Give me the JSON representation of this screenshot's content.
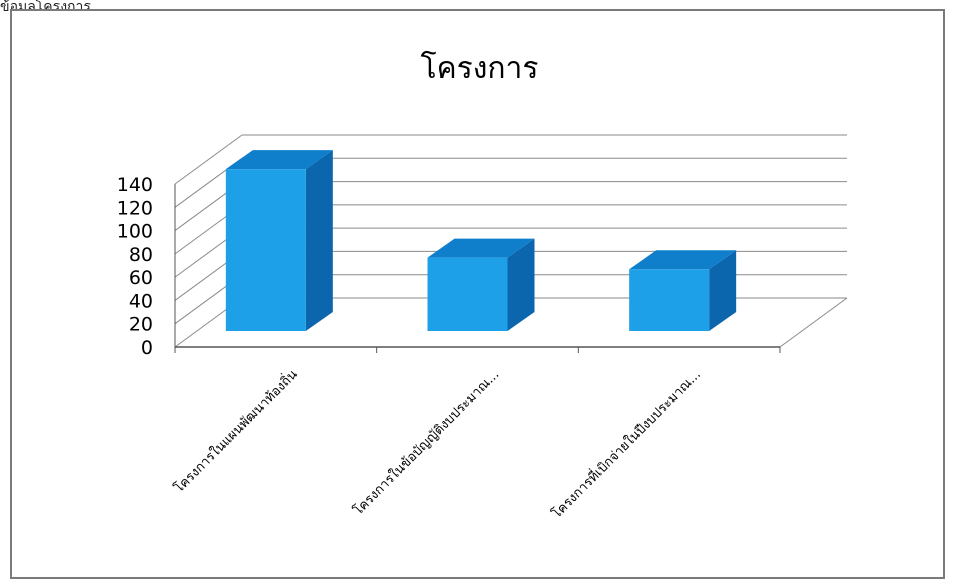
{
  "top_fragment": "ข้อมูลโครงการ",
  "chart_data": {
    "type": "bar",
    "title": "โครงการ",
    "categories": [
      "โครงการในแผนพัฒนาท้องถิ่น",
      "โครงการในข้อบัญญัติงบประมาณ...",
      "โครงการที่เบิกจ่ายในปีงบประมาณ..."
    ],
    "values": [
      139,
      63,
      53
    ],
    "ylim": [
      0,
      140
    ],
    "yticks": [
      "0",
      "20",
      "40",
      "60",
      "80",
      "100",
      "120",
      "140"
    ],
    "grid": true,
    "bar_color": "#1ea0e8",
    "bar_side_color": "#0b66ad",
    "bar_top_color": "#0f7fcc"
  }
}
